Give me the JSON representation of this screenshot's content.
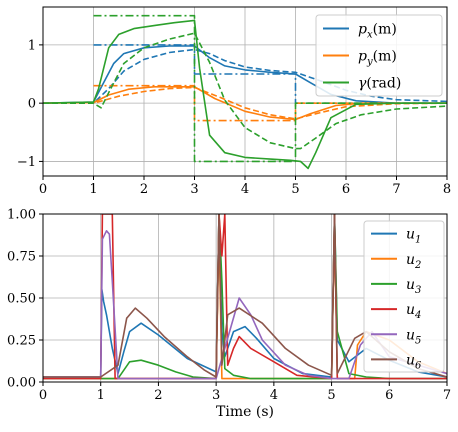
{
  "chart_data": [
    {
      "type": "line",
      "xlim": [
        0,
        8
      ],
      "ylim": [
        -1.25,
        1.65
      ],
      "xticks": [
        0,
        1,
        2,
        3,
        4,
        5,
        6,
        7,
        8
      ],
      "yticks": [
        -1,
        0,
        1
      ],
      "xlabel": "",
      "ylabel": "",
      "grid": true,
      "legend_position": "top-right",
      "series": [
        {
          "name": "p_x(m)",
          "legend": {
            "base": "p",
            "sub": "x",
            "unit": "(m)"
          },
          "color": "#1f77b4",
          "style": "solid",
          "x": [
            0,
            1,
            1.2,
            1.4,
            1.6,
            2.0,
            2.5,
            3.0,
            3.3,
            3.6,
            4.0,
            4.5,
            5.0,
            5.3,
            5.7,
            6.2,
            7,
            8
          ],
          "y": [
            0,
            0.02,
            0.35,
            0.68,
            0.85,
            0.95,
            0.98,
            0.98,
            0.78,
            0.64,
            0.57,
            0.53,
            0.5,
            0.35,
            0.15,
            0.04,
            0.0,
            0.0
          ]
        },
        {
          "name": "p_x(m) reference dashed",
          "color": "#1f77b4",
          "style": "dashed",
          "x": [
            0,
            1,
            1.3,
            1.6,
            2.0,
            2.5,
            3.0,
            3.3,
            3.6,
            4.0,
            4.5,
            5.0,
            5.5,
            6.0,
            6.5,
            7,
            8
          ],
          "y": [
            0,
            0.0,
            0.25,
            0.55,
            0.75,
            0.87,
            0.92,
            0.85,
            0.73,
            0.62,
            0.56,
            0.53,
            0.38,
            0.22,
            0.12,
            0.06,
            0.03
          ]
        },
        {
          "name": "p_x(m) setpoint",
          "color": "#1f77b4",
          "style": "dashdot",
          "x": [
            1,
            3,
            3,
            5,
            5,
            8
          ],
          "y": [
            1,
            1,
            0.5,
            0.5,
            0,
            0
          ]
        },
        {
          "name": "p_y(m)",
          "legend": {
            "base": "p",
            "sub": "y",
            "unit": "(m)"
          },
          "color": "#ff7f0e",
          "style": "solid",
          "x": [
            0,
            1,
            1.3,
            1.7,
            2.2,
            3.0,
            3.4,
            4.0,
            4.5,
            5.0,
            5.3,
            5.8,
            6.3,
            7,
            8
          ],
          "y": [
            0,
            0.01,
            0.14,
            0.24,
            0.28,
            0.28,
            0.08,
            -0.14,
            -0.24,
            -0.28,
            -0.18,
            -0.04,
            0.0,
            0.0,
            0.0
          ]
        },
        {
          "name": "p_y(m) reference dashed",
          "color": "#ff7f0e",
          "style": "dashed",
          "x": [
            0,
            1,
            1.5,
            2.0,
            2.5,
            3.0,
            3.5,
            4.0,
            4.5,
            5.0,
            5.5,
            6.0,
            7,
            8
          ],
          "y": [
            0,
            0.0,
            0.12,
            0.2,
            0.25,
            0.27,
            0.1,
            -0.08,
            -0.2,
            -0.27,
            -0.16,
            -0.06,
            -0.01,
            0.0
          ]
        },
        {
          "name": "p_y(m) setpoint",
          "color": "#ff7f0e",
          "style": "dashdot",
          "x": [
            1,
            3,
            3,
            5,
            5,
            8
          ],
          "y": [
            0.3,
            0.3,
            -0.3,
            -0.3,
            0,
            0
          ]
        },
        {
          "name": "γ(rad)",
          "legend": {
            "base": "γ",
            "sub": "",
            "unit": "(rad)"
          },
          "color": "#2ca02c",
          "style": "solid",
          "x": [
            0,
            1.0,
            1.1,
            1.3,
            1.5,
            1.8,
            2.2,
            2.6,
            3.0,
            3.1,
            3.3,
            3.6,
            4.0,
            4.5,
            4.9,
            5.1,
            5.25,
            5.4,
            5.7,
            6.2,
            7,
            8
          ],
          "y": [
            0,
            0.02,
            0.25,
            0.95,
            1.18,
            1.28,
            1.33,
            1.38,
            1.42,
            0.6,
            -0.55,
            -0.85,
            -0.93,
            -0.96,
            -0.98,
            -1.0,
            -1.12,
            -0.85,
            -0.25,
            -0.02,
            0.0,
            0.0
          ]
        },
        {
          "name": "γ(rad) reference dashed",
          "color": "#2ca02c",
          "style": "dashed",
          "x": [
            0,
            1,
            1.15,
            1.3,
            1.6,
            2.0,
            2.5,
            3.0,
            3.3,
            3.6,
            4.0,
            4.5,
            5.0,
            5.1,
            5.4,
            5.8,
            6.3,
            7,
            8
          ],
          "y": [
            0,
            0.0,
            -0.08,
            0.18,
            0.68,
            0.95,
            1.1,
            1.2,
            0.7,
            0.05,
            -0.42,
            -0.68,
            -0.78,
            -0.78,
            -0.6,
            -0.35,
            -0.2,
            -0.1,
            -0.05
          ]
        },
        {
          "name": "γ(rad) setpoint",
          "color": "#2ca02c",
          "style": "dashdot",
          "x": [
            1,
            3,
            3,
            5,
            5,
            8
          ],
          "y": [
            1.5,
            1.5,
            -1,
            -1,
            0,
            0
          ]
        }
      ]
    },
    {
      "type": "line",
      "xlim": [
        0,
        7
      ],
      "ylim": [
        0,
        1.0
      ],
      "xticks": [
        0,
        1,
        2,
        3,
        4,
        5,
        6,
        7
      ],
      "yticks": [
        0.0,
        0.25,
        0.5,
        0.75,
        1.0
      ],
      "ytick_labels": [
        "0.00",
        "0.25",
        "0.50",
        "0.75",
        "1.00"
      ],
      "xlabel": "Time (s)",
      "ylabel": "",
      "grid": true,
      "legend_position": "top-right",
      "series": [
        {
          "name": "u_1",
          "legend": {
            "base": "u",
            "sub": "1"
          },
          "color": "#1f77b4",
          "x": [
            0,
            1.0,
            1.02,
            1.05,
            1.1,
            1.2,
            1.3,
            1.4,
            1.5,
            1.7,
            2.0,
            2.5,
            3.0,
            3.05,
            3.1,
            3.15,
            3.3,
            3.5,
            3.7,
            4.0,
            4.5,
            5.0,
            5.05,
            5.1,
            5.3,
            5.6,
            6.0,
            6.5,
            7
          ],
          "y": [
            0.03,
            0.03,
            0.55,
            0.48,
            0.4,
            0.2,
            0.05,
            0.18,
            0.3,
            0.35,
            0.28,
            0.14,
            0.06,
            1.0,
            0.3,
            0.15,
            0.3,
            0.33,
            0.26,
            0.14,
            0.05,
            0.03,
            1.0,
            0.25,
            0.12,
            0.2,
            0.13,
            0.06,
            0.03
          ]
        },
        {
          "name": "u_2",
          "legend": {
            "base": "u",
            "sub": "2"
          },
          "color": "#ff7f0e",
          "x": [
            0,
            1.0,
            3.0,
            3.05,
            3.1,
            3.5,
            5.0,
            5.05,
            5.1,
            5.4,
            5.45,
            5.6,
            6.0,
            6.5,
            7
          ],
          "y": [
            0.03,
            0.02,
            0.02,
            0.9,
            0.02,
            0.02,
            0.02,
            0.95,
            0.02,
            0.02,
            0.22,
            0.3,
            0.25,
            0.12,
            0.05
          ]
        },
        {
          "name": "u_3",
          "legend": {
            "base": "u",
            "sub": "3"
          },
          "color": "#2ca02c",
          "x": [
            0,
            1.0,
            1.3,
            1.5,
            1.7,
            2.0,
            2.3,
            2.6,
            3.0,
            3.05,
            3.1,
            3.15,
            3.3,
            3.6,
            4.0,
            4.5,
            5.0,
            5.05,
            5.1,
            5.3,
            5.6,
            6.0,
            7
          ],
          "y": [
            0.02,
            0.02,
            0.02,
            0.12,
            0.13,
            0.1,
            0.06,
            0.03,
            0.02,
            1.0,
            0.6,
            0.08,
            0.04,
            0.02,
            0.02,
            0.02,
            0.02,
            1.0,
            0.3,
            0.05,
            0.03,
            0.02,
            0.02
          ]
        },
        {
          "name": "u_4",
          "legend": {
            "base": "u",
            "sub": "4"
          },
          "color": "#d62728",
          "x": [
            0,
            1.0,
            1.03,
            1.2,
            1.25,
            1.4,
            1.7,
            2.0,
            3.0,
            3.05,
            3.1,
            3.15,
            3.2,
            3.3,
            3.4,
            3.6,
            4.0,
            4.4,
            5.0,
            5.05,
            5.1,
            5.3,
            7
          ],
          "y": [
            0.02,
            0.02,
            1.0,
            1.0,
            0.02,
            0.02,
            0.02,
            0.02,
            0.02,
            1.0,
            0.75,
            1.0,
            0.1,
            0.2,
            0.27,
            0.2,
            0.12,
            0.04,
            0.02,
            1.0,
            0.02,
            0.02,
            0.02
          ]
        },
        {
          "name": "u_5",
          "legend": {
            "base": "u",
            "sub": "5"
          },
          "color": "#9467bd",
          "x": [
            0,
            1.0,
            1.03,
            1.1,
            1.15,
            1.2,
            1.3,
            3.0,
            3.4,
            3.6,
            3.8,
            4.2,
            4.6,
            5.0,
            5.3,
            5.5,
            5.7,
            6.0,
            7
          ],
          "y": [
            0.03,
            0.03,
            0.85,
            0.9,
            0.88,
            0.6,
            0.02,
            0.02,
            0.5,
            0.4,
            0.25,
            0.1,
            0.04,
            0.02,
            0.02,
            0.22,
            0.3,
            0.15,
            0.05
          ]
        },
        {
          "name": "u_6",
          "legend": {
            "base": "u",
            "sub": "6"
          },
          "color": "#8c564b",
          "x": [
            0,
            1.0,
            1.3,
            1.45,
            1.6,
            1.8,
            2.1,
            2.5,
            2.8,
            3.0,
            3.05,
            3.1,
            3.2,
            3.4,
            3.8,
            4.2,
            4.6,
            5.0,
            5.05,
            5.1,
            5.4,
            5.6,
            6.0,
            6.5,
            7
          ],
          "y": [
            0.03,
            0.03,
            0.1,
            0.38,
            0.44,
            0.38,
            0.27,
            0.15,
            0.07,
            0.03,
            1.0,
            0.1,
            0.4,
            0.44,
            0.35,
            0.2,
            0.1,
            0.04,
            1.0,
            0.05,
            0.26,
            0.3,
            0.18,
            0.08,
            0.03
          ]
        }
      ]
    }
  ]
}
